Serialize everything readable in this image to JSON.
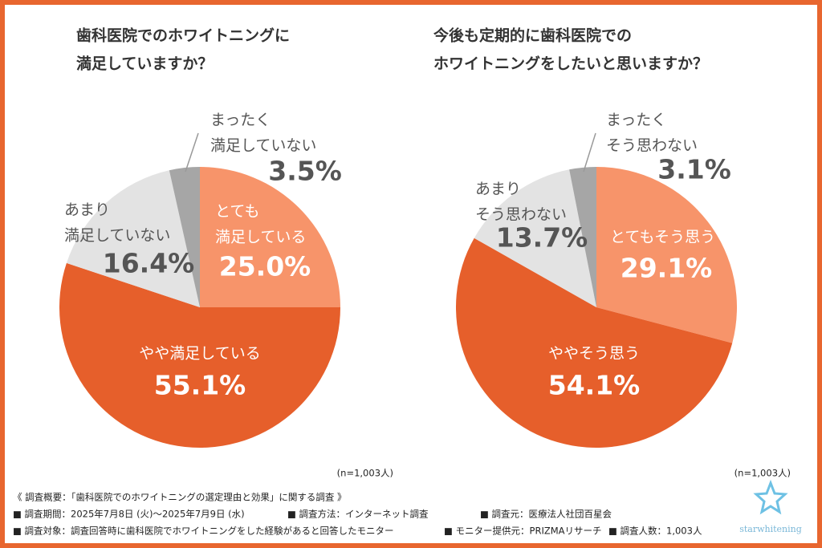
{
  "chart_data": [
    {
      "type": "pie",
      "title": [
        "歯科医院でのホワイトニングに",
        "満足していますか？"
      ],
      "labels": [
        [
          "とても",
          "満足している"
        ],
        [
          "やや満足している"
        ],
        [
          "あまり",
          "満足していない"
        ],
        [
          "まったく",
          "満足していない"
        ]
      ],
      "values": [
        25.0,
        55.1,
        16.4,
        3.5
      ],
      "value_labels": [
        "25.0%",
        "55.1%",
        "16.4%",
        "3.5%"
      ],
      "colors": [
        "#f7946a",
        "#e65f2b",
        "#e3e3e3",
        "#a6a6a6"
      ],
      "note": "(n=1,003人)"
    },
    {
      "type": "pie",
      "title": [
        "今後も定期的に歯科医院での",
        "ホワイトニングをしたいと思いますか？"
      ],
      "labels": [
        [
          "とてもそう思う"
        ],
        [
          "ややそう思う"
        ],
        [
          "あまり",
          "そう思わない"
        ],
        [
          "まったく",
          "そう思わない"
        ]
      ],
      "values": [
        29.1,
        54.1,
        13.7,
        3.1
      ],
      "value_labels": [
        "29.1%",
        "54.1%",
        "13.7%",
        "3.1%"
      ],
      "colors": [
        "#f7946a",
        "#e65f2b",
        "#e3e3e3",
        "#a6a6a6"
      ],
      "note": "(n=1,003人)"
    }
  ],
  "footer": {
    "heading": "《 調査概要：「歯科医院でのホワイトニングの選定理由と効果」に関する調査 》",
    "items": [
      [
        "■ 調査期間：2025年7月8日 (火)〜2025年7月9日 (水)",
        "■ 調査方法：インターネット調査",
        "■ 調査元：医療法人社団百星会"
      ],
      [
        "■ 調査対象：調査回答時に歯科医院でホワイトニングをした経験があると回答したモニター",
        "■ モニター提供元：PRIZMAリサーチ",
        "■ 調査人数：1,003人"
      ]
    ],
    "logo": "starwhitening"
  }
}
